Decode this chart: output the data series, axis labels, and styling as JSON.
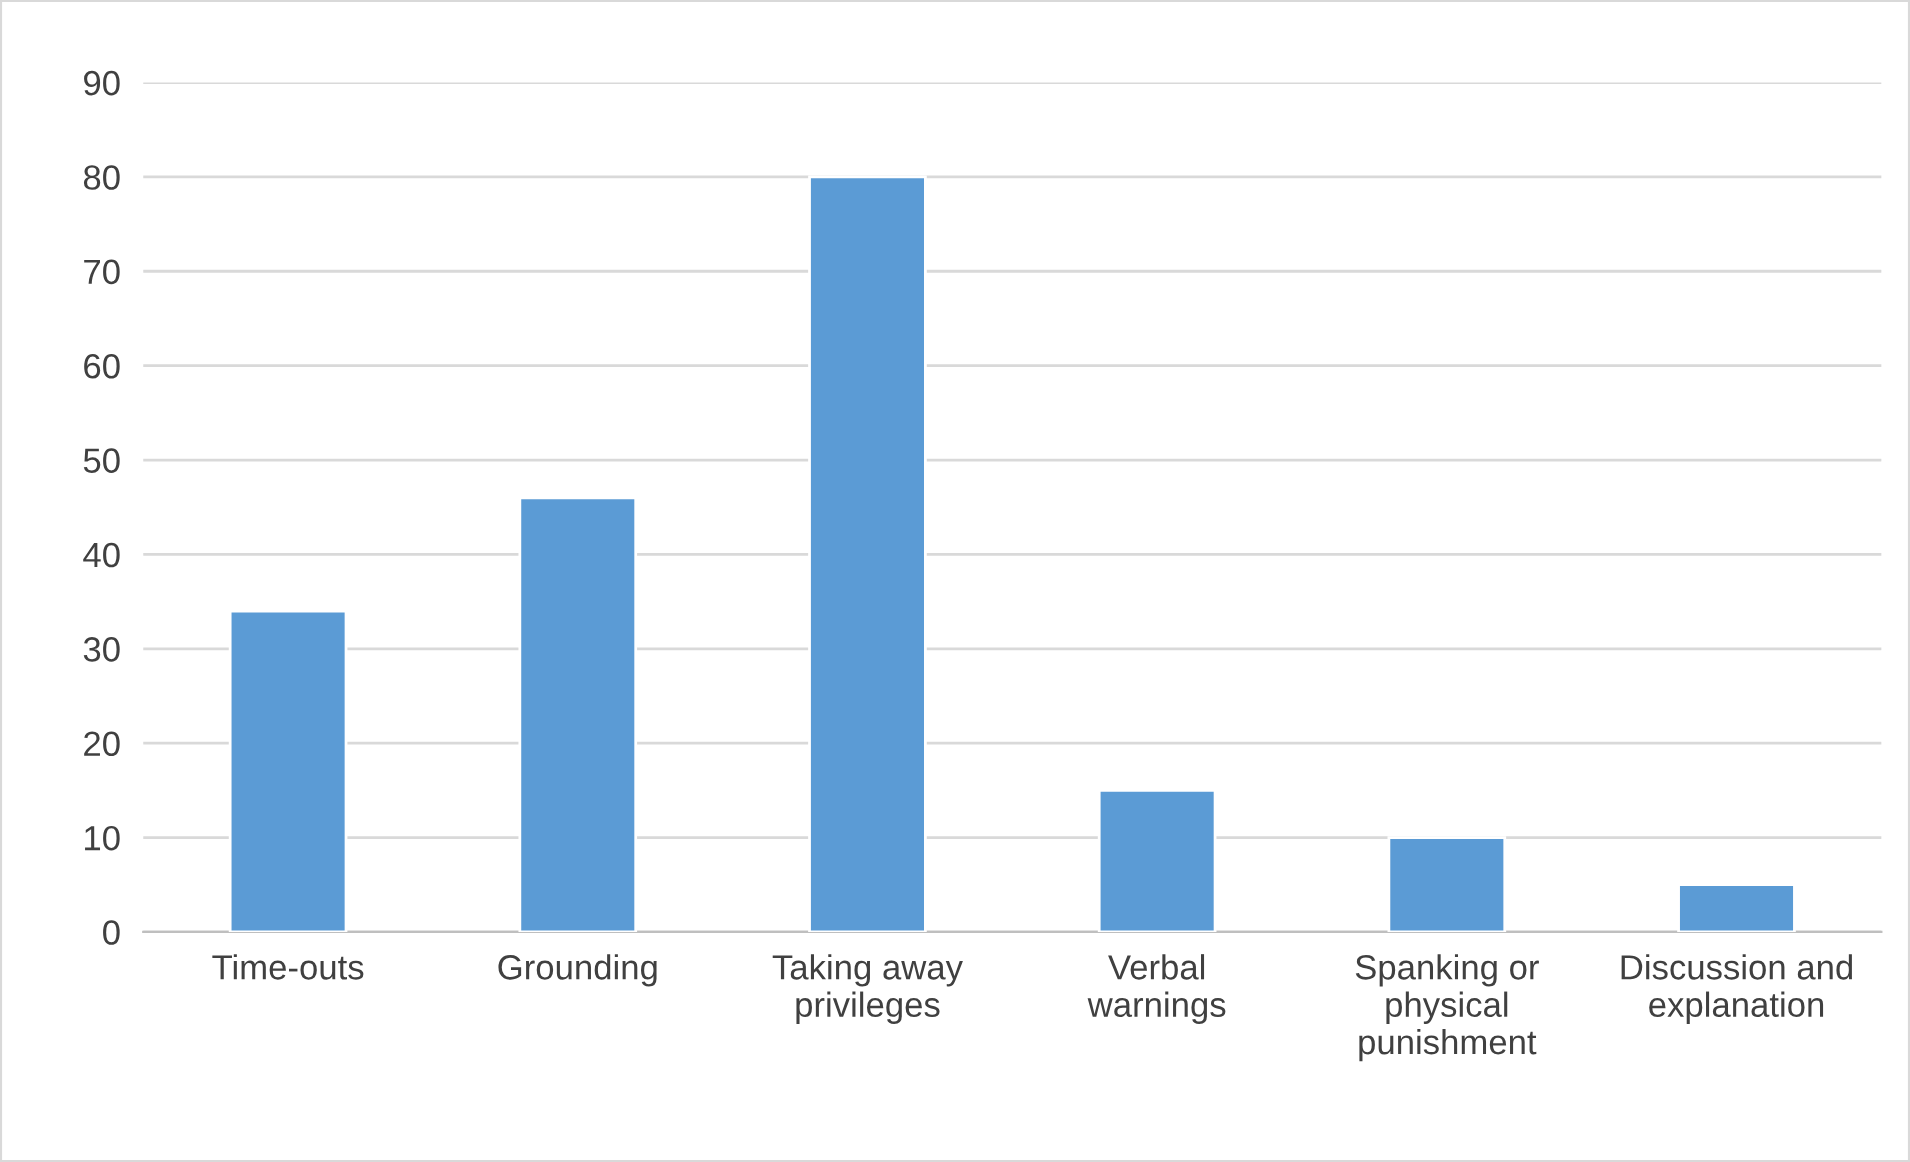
{
  "chart_data": {
    "type": "bar",
    "categories": [
      "Time-outs",
      "Grounding",
      "Taking away\nprivileges",
      "Verbal\nwarnings",
      "Spanking or\nphysical\npunishment",
      "Discussion and\nexplanation"
    ],
    "values": [
      34,
      46,
      80,
      15,
      10,
      5
    ],
    "color": "#5b9bd5",
    "ylim": [
      0,
      90
    ],
    "yticks": [
      0,
      10,
      20,
      30,
      40,
      50,
      60,
      70,
      80,
      90
    ],
    "grid": "y",
    "legend": false
  }
}
